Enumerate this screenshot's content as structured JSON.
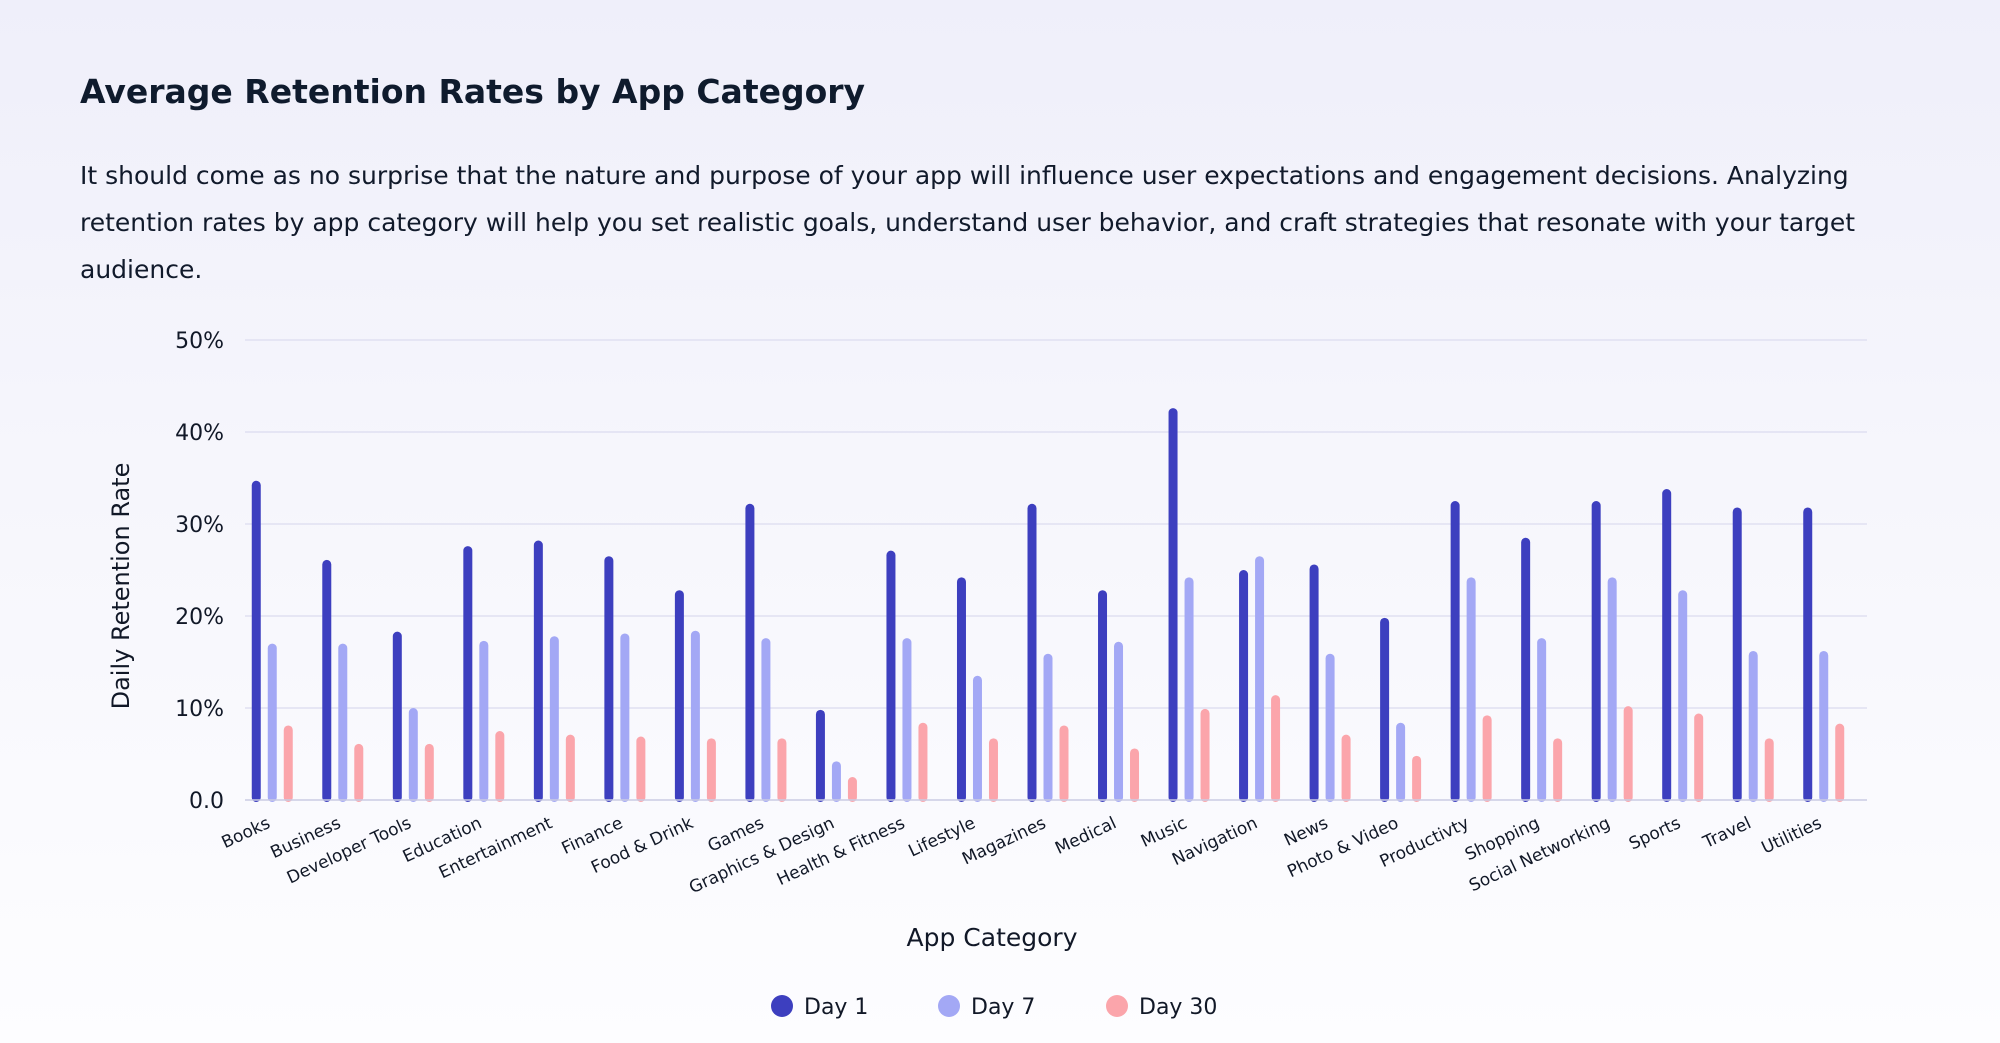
{
  "header": {
    "title": "Average Retention Rates by App Category",
    "description": "It should come as no surprise that the nature and purpose of your app will influence user expectations and engagement decisions. Analyzing retention rates by app category will help you set realistic goals, understand user behavior, and craft strategies that resonate with your target audience."
  },
  "chart_data": {
    "type": "bar",
    "xlabel": "App Category",
    "ylabel": "Daily Retention Rate",
    "ylim": [
      0,
      50
    ],
    "yticks": [
      0,
      10,
      20,
      30,
      40,
      50
    ],
    "ytick_labels": [
      "0.0",
      "10%",
      "20%",
      "30%",
      "40%",
      "50%"
    ],
    "grid": true,
    "legend_position": "bottom-center",
    "categories": [
      "Books",
      "Business",
      "Developer Tools",
      "Education",
      "Entertainment",
      "Finance",
      "Food & Drink",
      "Games",
      "Graphics & Design",
      "Health & Fitness",
      "Lifestyle",
      "Magazines",
      "Medical",
      "Music",
      "Navigation",
      "News",
      "Photo & Video",
      "Productivty",
      "Shopping",
      "Social Networking",
      "Sports",
      "Travel",
      "Utilities"
    ],
    "series": [
      {
        "name": "Day 1",
        "color": "#3d3fbf",
        "values": [
          34.7,
          26.1,
          18.3,
          27.6,
          28.2,
          26.5,
          22.8,
          32.2,
          9.8,
          27.1,
          24.2,
          32.2,
          22.8,
          42.6,
          25.0,
          25.6,
          19.8,
          32.5,
          28.5,
          32.5,
          33.8,
          31.8,
          31.8
        ]
      },
      {
        "name": "Day 7",
        "color": "#a3a8f5",
        "values": [
          17.0,
          17.0,
          10.0,
          17.3,
          17.8,
          18.1,
          18.4,
          17.6,
          4.2,
          17.6,
          13.5,
          15.9,
          17.2,
          24.2,
          26.5,
          15.9,
          8.4,
          24.2,
          17.6,
          24.2,
          22.8,
          16.2,
          16.2
        ]
      },
      {
        "name": "Day 30",
        "color": "#fba5ab",
        "values": [
          8.1,
          6.1,
          6.1,
          7.5,
          7.1,
          6.9,
          6.7,
          6.7,
          2.5,
          8.4,
          6.7,
          8.1,
          5.6,
          9.9,
          11.4,
          7.1,
          4.8,
          9.2,
          6.7,
          10.2,
          9.4,
          6.7,
          8.3
        ]
      }
    ]
  }
}
